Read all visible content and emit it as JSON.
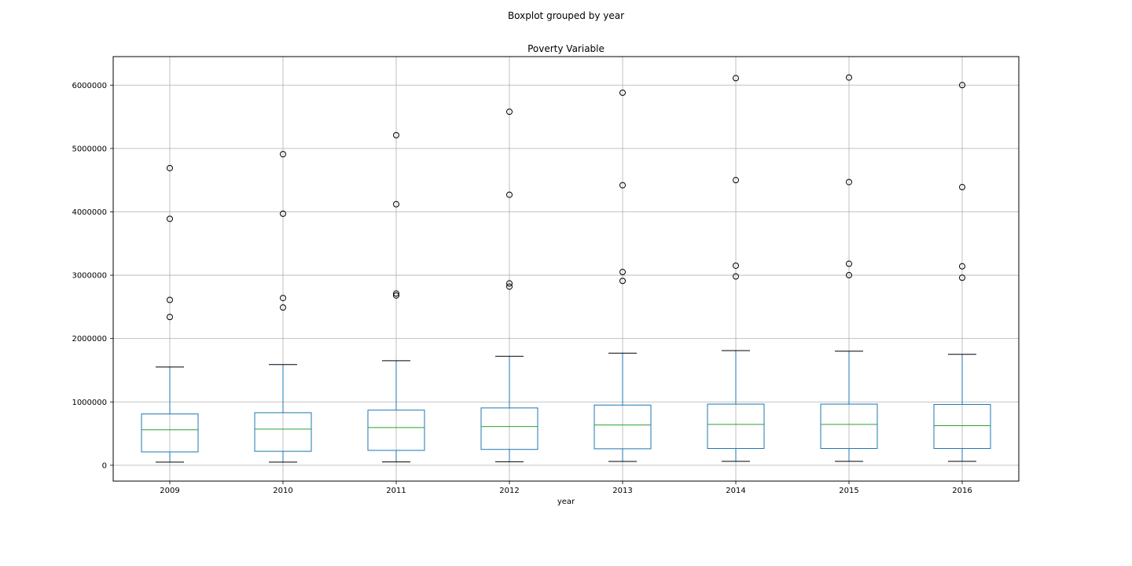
{
  "chart_data": {
    "type": "boxplot",
    "suptitle": "Boxplot grouped by year",
    "title": "Poverty Variable",
    "xlabel": "year",
    "ylabel": "",
    "ylim": [
      -250000,
      6450000
    ],
    "yticks": [
      0,
      1000000,
      2000000,
      3000000,
      4000000,
      5000000,
      6000000
    ],
    "grid": true,
    "colors": {
      "box": "#1f77b4",
      "median": "#2ca02c",
      "whisker_cap": "#000000",
      "grid": "#b0b0b0"
    },
    "categories": [
      "2009",
      "2010",
      "2011",
      "2012",
      "2013",
      "2014",
      "2015",
      "2016"
    ],
    "boxes": [
      {
        "whislo": 50000,
        "q1": 210000,
        "med": 560000,
        "q3": 810000,
        "whishi": 1550000,
        "fliers": [
          2340000,
          2610000,
          3890000,
          4690000
        ]
      },
      {
        "whislo": 50000,
        "q1": 220000,
        "med": 570000,
        "q3": 830000,
        "whishi": 1590000,
        "fliers": [
          2490000,
          2640000,
          3970000,
          4910000
        ]
      },
      {
        "whislo": 52000,
        "q1": 235000,
        "med": 595000,
        "q3": 870000,
        "whishi": 1650000,
        "fliers": [
          2680000,
          2710000,
          4120000,
          5210000
        ]
      },
      {
        "whislo": 55000,
        "q1": 250000,
        "med": 610000,
        "q3": 905000,
        "whishi": 1720000,
        "fliers": [
          2820000,
          2870000,
          4270000,
          5580000
        ]
      },
      {
        "whislo": 60000,
        "q1": 260000,
        "med": 635000,
        "q3": 950000,
        "whishi": 1770000,
        "fliers": [
          2910000,
          3050000,
          4420000,
          5880000
        ]
      },
      {
        "whislo": 62000,
        "q1": 265000,
        "med": 645000,
        "q3": 965000,
        "whishi": 1810000,
        "fliers": [
          2980000,
          3150000,
          4500000,
          6110000
        ]
      },
      {
        "whislo": 62000,
        "q1": 265000,
        "med": 645000,
        "q3": 965000,
        "whishi": 1800000,
        "fliers": [
          3000000,
          3180000,
          4470000,
          6120000
        ]
      },
      {
        "whislo": 62000,
        "q1": 265000,
        "med": 625000,
        "q3": 960000,
        "whishi": 1750000,
        "fliers": [
          2960000,
          3140000,
          4390000,
          6000000
        ]
      }
    ]
  }
}
